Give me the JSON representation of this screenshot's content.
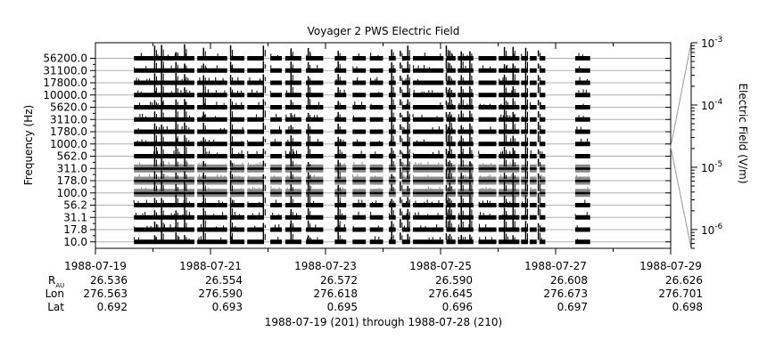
{
  "chart_data": {
    "type": "line",
    "title": "Voyager 2 PWS Electric Field",
    "ylabel": "Frequency (Hz)",
    "colorbar_label": "Electric Field (V/m)",
    "colorbar_ticks": [
      {
        "base": "10",
        "exp": "-3",
        "value": 0.001
      },
      {
        "base": "10",
        "exp": "-4",
        "value": 0.0001
      },
      {
        "base": "10",
        "exp": "-5",
        "value": 1e-05
      },
      {
        "base": "10",
        "exp": "-6",
        "value": 1e-06
      }
    ],
    "channels": [
      "56200.0",
      "31100.0",
      "17800.0",
      "10000.0",
      "5620.0",
      "3110.0",
      "1780.0",
      "1000.0",
      "562.0",
      "311.0",
      "178.0",
      "100.0",
      "56.2",
      "31.1",
      "17.8",
      "10.0"
    ],
    "x_ticks": [
      "1988-07-19",
      "1988-07-21",
      "1988-07-23",
      "1988-07-25",
      "1988-07-27",
      "1988-07-29"
    ],
    "x_range_days": [
      0,
      10
    ],
    "ephemeris": {
      "row_labels": [
        "R",
        "Lon",
        "Lat"
      ],
      "r_subscript": "AU",
      "values": [
        [
          "26.536",
          "26.554",
          "26.572",
          "26.590",
          "26.608",
          "26.626"
        ],
        [
          "276.563",
          "276.590",
          "276.618",
          "276.645",
          "276.673",
          "276.701"
        ],
        [
          "0.692",
          "0.693",
          "0.695",
          "0.696",
          "0.697",
          "0.698"
        ]
      ]
    },
    "xlabel": "1988-07-19 (201) through 1988-07-28 (210)",
    "data_segments_days": [
      [
        0.67,
        1.72
      ],
      [
        1.77,
        2.29
      ],
      [
        2.34,
        2.59
      ],
      [
        2.64,
        2.93
      ],
      [
        3.04,
        3.24
      ],
      [
        3.3,
        3.58
      ],
      [
        3.66,
        3.96
      ],
      [
        4.16,
        4.36
      ],
      [
        4.47,
        4.7
      ],
      [
        4.77,
        5.0
      ],
      [
        5.1,
        5.22
      ],
      [
        5.33,
        5.47
      ],
      [
        5.52,
        6.05
      ],
      [
        6.1,
        6.26
      ],
      [
        6.3,
        6.57
      ],
      [
        6.66,
        6.97
      ],
      [
        7.01,
        7.37
      ],
      [
        7.4,
        7.52
      ],
      [
        7.55,
        7.67
      ],
      [
        7.72,
        7.82
      ],
      [
        8.34,
        8.6
      ]
    ],
    "spike_days": [
      1.03,
      1.15,
      1.4,
      1.55,
      1.88,
      2.35,
      2.92,
      3.4,
      3.7,
      4.22,
      5.15,
      5.3,
      5.43,
      6.1,
      6.16,
      6.36,
      6.51,
      7.11,
      7.26,
      7.48,
      7.7
    ]
  }
}
